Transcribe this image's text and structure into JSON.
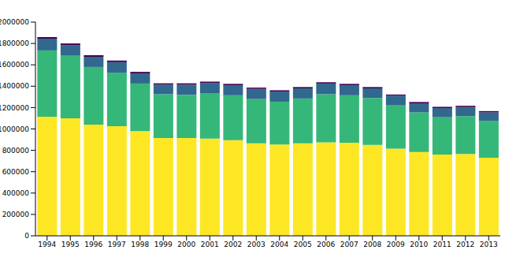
{
  "chart_data": {
    "type": "bar",
    "stacked": true,
    "grid": false,
    "categories": [
      "1994",
      "1995",
      "1996",
      "1997",
      "1998",
      "1999",
      "2000",
      "2001",
      "2002",
      "2003",
      "2004",
      "2005",
      "2006",
      "2007",
      "2008",
      "2009",
      "2010",
      "2011",
      "2012",
      "2013"
    ],
    "series": [
      {
        "color": "#fde725",
        "values": [
          1115000,
          1100000,
          1040000,
          1025000,
          980000,
          915000,
          915000,
          910000,
          895000,
          865000,
          855000,
          865000,
          875000,
          870000,
          850000,
          815000,
          785000,
          760000,
          765000,
          730000
        ]
      },
      {
        "color": "#35b779",
        "values": [
          620000,
          585000,
          540000,
          500000,
          445000,
          410000,
          405000,
          425000,
          420000,
          415000,
          400000,
          420000,
          450000,
          445000,
          440000,
          405000,
          370000,
          350000,
          355000,
          345000
        ]
      },
      {
        "color": "#31688e",
        "values": [
          110000,
          100000,
          95000,
          100000,
          95000,
          90000,
          95000,
          95000,
          95000,
          95000,
          95000,
          95000,
          100000,
          95000,
          90000,
          90000,
          85000,
          85000,
          85000,
          80000
        ]
      },
      {
        "color": "#440154",
        "values": [
          15000,
          15000,
          15000,
          15000,
          14000,
          12000,
          12000,
          12000,
          12000,
          12000,
          12000,
          12000,
          12000,
          12000,
          12000,
          12000,
          12000,
          12000,
          12000,
          12000
        ]
      }
    ],
    "ylim": [
      0,
      2000000
    ],
    "yticks": [
      0,
      200000,
      400000,
      600000,
      800000,
      1000000,
      1200000,
      1400000,
      1600000,
      1800000,
      2000000
    ]
  }
}
